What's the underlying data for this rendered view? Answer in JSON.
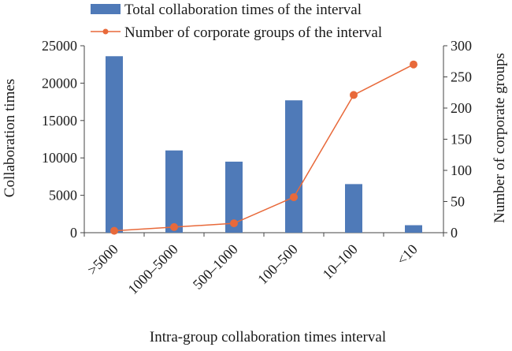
{
  "chart_data": {
    "type": "bar",
    "categories": [
      ">5000",
      "1000–5000",
      "500–1000",
      "100–500",
      "10–100",
      "<10"
    ],
    "series": [
      {
        "name": "Total collaboration times of the interval",
        "type": "bar",
        "axis": "left",
        "values": [
          23600,
          11000,
          9500,
          17700,
          6500,
          1000
        ]
      },
      {
        "name": "Number of corporate groups of the interval",
        "type": "line",
        "axis": "right",
        "values": [
          3,
          9,
          15,
          57,
          221,
          270
        ]
      }
    ],
    "xlabel": "Intra-group collaboration times interval",
    "ylabel": "Collaboration times",
    "y2label": "Number of corporate groups",
    "ylim": [
      0,
      25000
    ],
    "y2lim": [
      0,
      300
    ],
    "yticks": [
      "0",
      "5000",
      "10000",
      "15000",
      "20000",
      "25000"
    ],
    "y2ticks": [
      "0",
      "50",
      "100",
      "150",
      "200",
      "250",
      "300"
    ],
    "legend_position": "top",
    "colors": {
      "bar": "#4f7ab8",
      "line": "#e8693a"
    }
  }
}
